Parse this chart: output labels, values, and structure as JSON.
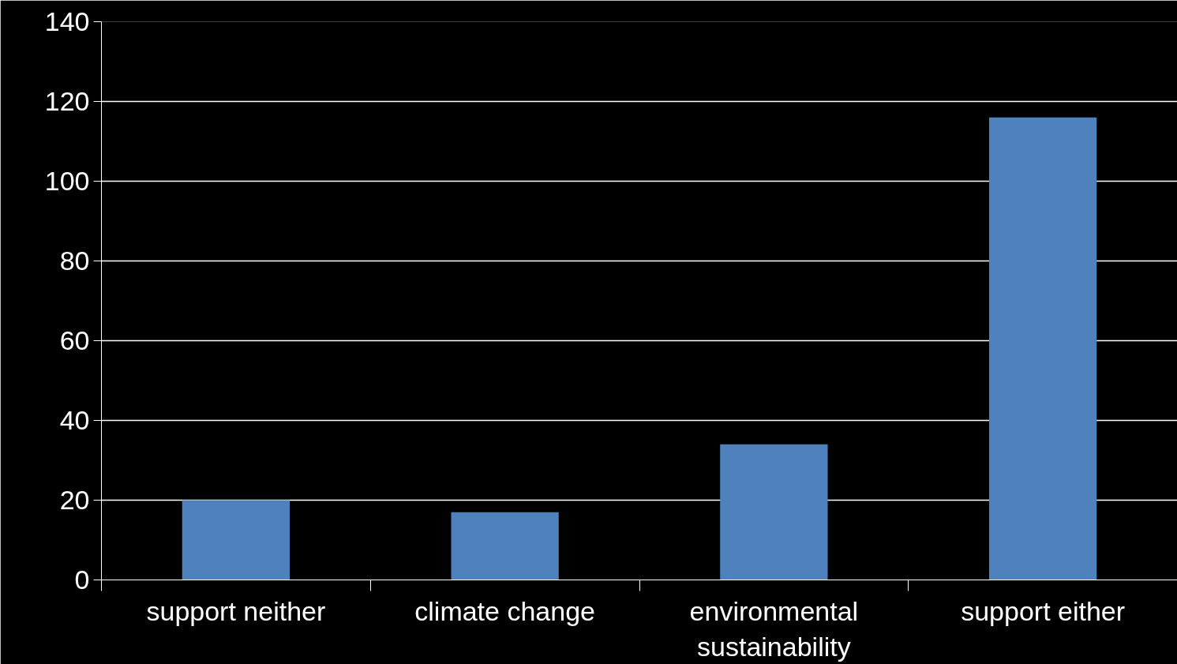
{
  "chart_data": {
    "type": "bar",
    "categories": [
      "support neither",
      "climate change",
      "environmental sustainability",
      "support either"
    ],
    "values": [
      20,
      17,
      34,
      116
    ],
    "color": "#4f81bd",
    "ylim": [
      0,
      140
    ],
    "yticks": [
      0,
      20,
      40,
      60,
      80,
      100,
      120,
      140
    ],
    "grid": "y"
  }
}
